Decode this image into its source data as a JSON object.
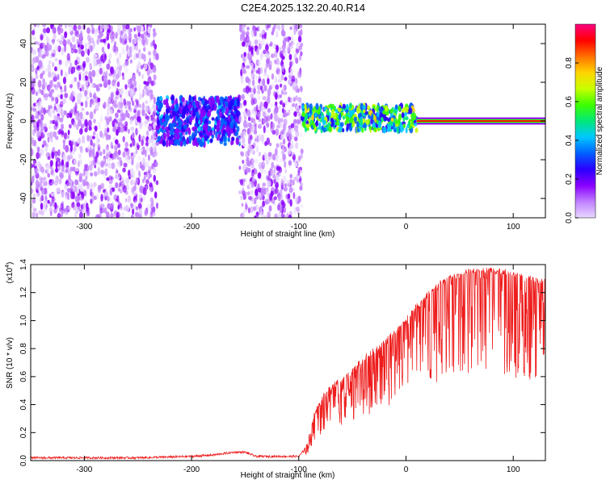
{
  "title": "C2E4.2025.132.20.40.R14",
  "colors": {
    "snr_line": "#ee1c1c",
    "colormap": [
      "#ffffff",
      "#e8d8ff",
      "#c080ff",
      "#8a00ff",
      "#2a00ff",
      "#0060ff",
      "#00c8ff",
      "#00e87a",
      "#3cff00",
      "#c8ff00",
      "#ffd400",
      "#ff7000",
      "#ff0000",
      "#ff0080"
    ]
  },
  "chart_data": [
    {
      "type": "heatmap",
      "xlabel": "Height of straight line (km)",
      "ylabel": "Frequency (Hz)",
      "xlim": [
        -350,
        130
      ],
      "ylim": [
        -50,
        50
      ],
      "xticks": [
        "-300",
        "-200",
        "-100",
        "0",
        "100"
      ],
      "yticks": [
        "-40",
        "-20",
        "0",
        "20",
        "40"
      ],
      "description_regions": [
        {
          "x": [
            -350,
            -232
          ],
          "y": [
            -50,
            50
          ],
          "level": 0.12
        },
        {
          "x": [
            -232,
            -155
          ],
          "y": [
            -12,
            12
          ],
          "level": 0.3
        },
        {
          "x": [
            -155,
            -97
          ],
          "y": [
            -50,
            50
          ],
          "level": 0.12
        },
        {
          "x": [
            -97,
            10
          ],
          "y": [
            -5,
            8
          ],
          "level": 0.55
        },
        {
          "x": [
            10,
            130
          ],
          "y": [
            -1,
            1
          ],
          "level": 0.95
        }
      ],
      "colorbar": {
        "label": "Normalized spectral amplitude",
        "ticks": [
          "0.0",
          "0.2",
          "0.4",
          "0.6",
          "0.8"
        ],
        "range": [
          0,
          1
        ]
      }
    },
    {
      "type": "line",
      "xlabel": "Height of straight line (km)",
      "ylabel": "SNR (10 * v/v)",
      "multiplier_label": "(x10",
      "multiplier_exp": "4",
      "xlim": [
        -350,
        130
      ],
      "ylim": [
        0,
        1.4
      ],
      "xticks": [
        "-300",
        "-200",
        "-100",
        "0",
        "100"
      ],
      "yticks": [
        "0.0",
        "0.2",
        "0.4",
        "0.6",
        "0.8",
        "1.0",
        "1.2",
        "1.4"
      ],
      "series": [
        {
          "x": [
            -350,
            -300,
            -250,
            -200,
            -180,
            -160,
            -150,
            -140,
            -120,
            -100,
            -92,
            -85,
            -75,
            -65,
            -55,
            -45,
            -35,
            -25,
            -15,
            -5,
            0,
            10,
            20,
            30,
            40,
            50,
            60,
            70,
            80,
            90,
            100,
            110,
            120,
            130
          ],
          "values": [
            0.02,
            0.02,
            0.02,
            0.03,
            0.04,
            0.06,
            0.06,
            0.03,
            0.03,
            0.03,
            0.1,
            0.35,
            0.48,
            0.55,
            0.6,
            0.68,
            0.76,
            0.8,
            0.88,
            0.95,
            1.0,
            1.1,
            1.18,
            1.25,
            1.3,
            1.33,
            1.35,
            1.36,
            1.36,
            1.35,
            1.33,
            1.32,
            1.3,
            1.28
          ]
        }
      ]
    }
  ]
}
